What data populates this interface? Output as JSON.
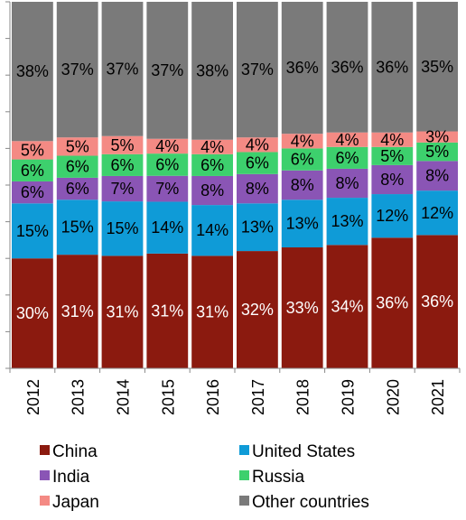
{
  "chart_data": {
    "type": "bar",
    "stacked": true,
    "normalized": true,
    "categories": [
      "2012",
      "2013",
      "2014",
      "2015",
      "2016",
      "2017",
      "2018",
      "2019",
      "2020",
      "2021"
    ],
    "ylim": [
      0,
      100
    ],
    "grid": false,
    "legend_position": "bottom",
    "series": [
      {
        "name": "China",
        "color": "#8b1a0f",
        "values": [
          30,
          31,
          31,
          31,
          31,
          32,
          33,
          34,
          36,
          36
        ],
        "labels": [
          "30%",
          "31%",
          "31%",
          "31%",
          "31%",
          "32%",
          "33%",
          "34%",
          "36%",
          "36%"
        ]
      },
      {
        "name": "United States",
        "color": "#0f9bd7",
        "values": [
          15,
          15,
          15,
          14,
          14,
          13,
          13,
          13,
          12,
          12
        ],
        "labels": [
          "15%",
          "15%",
          "15%",
          "14%",
          "14%",
          "13%",
          "13%",
          "13%",
          "12%",
          "12%"
        ]
      },
      {
        "name": "India",
        "color": "#8a55b5",
        "values": [
          6,
          6,
          7,
          7,
          8,
          8,
          8,
          8,
          8,
          8
        ],
        "labels": [
          "6%",
          "6%",
          "7%",
          "7%",
          "8%",
          "8%",
          "8%",
          "8%",
          "8%",
          "8%"
        ]
      },
      {
        "name": "Russia",
        "color": "#3dd06d",
        "values": [
          6,
          6,
          6,
          6,
          6,
          6,
          6,
          6,
          5,
          5
        ],
        "labels": [
          "6%",
          "6%",
          "6%",
          "6%",
          "6%",
          "6%",
          "6%",
          "6%",
          "5%",
          "5%"
        ]
      },
      {
        "name": "Japan",
        "color": "#f48a84",
        "values": [
          5,
          5,
          5,
          4,
          4,
          4,
          4,
          4,
          4,
          3
        ],
        "labels": [
          "5%",
          "5%",
          "5%",
          "4%",
          "4%",
          "4%",
          "4%",
          "4%",
          "4%",
          "3%"
        ]
      },
      {
        "name": "Other countries",
        "color": "#7a7a7a",
        "values": [
          38,
          37,
          37,
          37,
          38,
          37,
          36,
          36,
          36,
          35
        ],
        "labels": [
          "38%",
          "37%",
          "37%",
          "37%",
          "38%",
          "37%",
          "36%",
          "36%",
          "36%",
          "35%"
        ]
      }
    ]
  }
}
